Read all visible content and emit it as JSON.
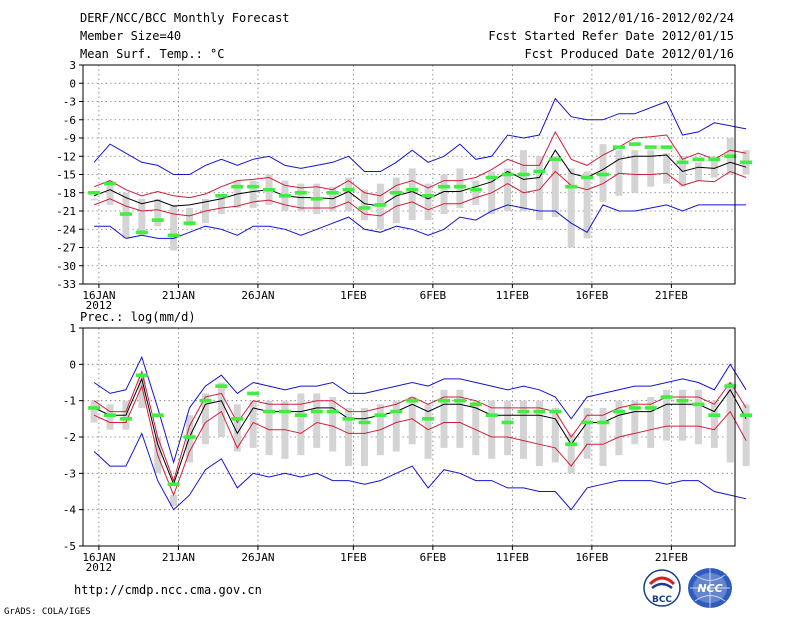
{
  "header": {
    "title": "DERF/NCC/BCC Monthly Forecast",
    "member_size": "Member Size=40",
    "variable": "Mean Surf. Temp.: °C",
    "period": "For 2012/01/16-2012/02/24",
    "start_date": "Fcst Started Refer Date 2012/01/15",
    "produced_date": "Fcst Produced Date 2012/01/16"
  },
  "footer": {
    "url": "http://cmdp.ncc.cma.gov.cn",
    "credit": "GrADS: COLA/IGES",
    "logo_bcc_text": "BCC",
    "logo_ncc_text": "NCC"
  },
  "chart_data": [
    {
      "type": "line",
      "title": "Mean Surf. Temp.: °C",
      "xlabel": "",
      "ylabel": "",
      "x_tick_labels": [
        "16JAN",
        "21JAN",
        "26JAN",
        "1FEB",
        "6FEB",
        "11FEB",
        "16FEB",
        "21FEB"
      ],
      "x_tick_days": [
        1,
        6,
        11,
        17,
        22,
        27,
        32,
        37
      ],
      "year_label": "2012",
      "ylim": [
        -33,
        3
      ],
      "yticks": [
        3,
        0,
        -3,
        -6,
        -9,
        -12,
        -15,
        -18,
        -21,
        -24,
        -27,
        -30,
        -33
      ],
      "day_range": [
        0,
        41
      ],
      "ensemble_mean": [
        -18.5,
        -17.5,
        -18.8,
        -19.8,
        -19.2,
        -20.2,
        -20.0,
        -19.5,
        -19.0,
        -18.2,
        -17.8,
        -17.5,
        -18.5,
        -18.8,
        -18.8,
        -19.0,
        -17.8,
        -19.8,
        -20.2,
        -18.5,
        -17.8,
        -19.0,
        -17.8,
        -17.8,
        -17.0,
        -16.2,
        -14.5,
        -15.8,
        -15.5,
        -11.0,
        -14.8,
        -15.5,
        -14.2,
        -12.5,
        -12.0,
        -12.0,
        -11.8,
        -14.5,
        -13.8,
        -14.0,
        -13.0,
        -13.8
      ],
      "upper_red": [
        -17.0,
        -16.0,
        -17.5,
        -18.5,
        -17.8,
        -18.5,
        -18.8,
        -18.2,
        -17.0,
        -16.0,
        -15.8,
        -15.5,
        -16.8,
        -17.2,
        -17.0,
        -17.5,
        -16.0,
        -18.0,
        -18.5,
        -16.8,
        -16.0,
        -17.2,
        -16.0,
        -16.0,
        -15.5,
        -14.2,
        -12.5,
        -13.5,
        -13.5,
        -8.0,
        -12.5,
        -13.5,
        -11.8,
        -10.5,
        -9.0,
        -8.8,
        -8.5,
        -12.5,
        -11.5,
        -12.5,
        -11.0,
        -11.5
      ],
      "lower_red": [
        -20.0,
        -19.0,
        -20.2,
        -21.0,
        -20.8,
        -21.5,
        -21.8,
        -21.0,
        -20.5,
        -20.2,
        -19.5,
        -19.2,
        -20.0,
        -20.5,
        -20.5,
        -20.5,
        -19.5,
        -21.5,
        -21.8,
        -20.2,
        -19.5,
        -20.8,
        -19.8,
        -19.8,
        -18.8,
        -18.0,
        -16.5,
        -18.0,
        -17.5,
        -14.5,
        -16.8,
        -17.5,
        -16.5,
        -14.8,
        -15.0,
        -15.0,
        -14.8,
        -16.8,
        -16.0,
        -16.2,
        -14.5,
        -15.5
      ],
      "max_blue": [
        -13.0,
        -10.0,
        -11.5,
        -13.0,
        -13.5,
        -15.0,
        -15.0,
        -13.5,
        -12.5,
        -13.5,
        -12.5,
        -12.0,
        -13.5,
        -14.0,
        -13.5,
        -13.0,
        -12.0,
        -14.5,
        -14.5,
        -13.0,
        -11.0,
        -13.0,
        -12.0,
        -10.0,
        -12.5,
        -12.0,
        -8.5,
        -9.0,
        -8.5,
        -2.5,
        -5.5,
        -6.0,
        -6.0,
        -5.0,
        -5.0,
        -4.0,
        -3.0,
        -8.5,
        -8.0,
        -6.5,
        -7.0,
        -7.5
      ],
      "min_blue": [
        -23.5,
        -23.5,
        -25.5,
        -25.0,
        -25.5,
        -25.5,
        -24.5,
        -23.5,
        -24.0,
        -25.0,
        -23.5,
        -23.5,
        -24.0,
        -25.0,
        -24.0,
        -23.0,
        -22.0,
        -24.0,
        -24.5,
        -23.5,
        -24.0,
        -25.0,
        -24.0,
        -22.0,
        -22.5,
        -21.0,
        -20.0,
        -20.5,
        -21.0,
        -21.0,
        -23.0,
        -24.5,
        -20.0,
        -21.0,
        -21.0,
        -20.5,
        -20.0,
        -21.0,
        -20.0,
        -20.0,
        -20.0,
        -20.0
      ],
      "spread_top": [
        -19.0,
        -16.0,
        -18.0,
        -19.0,
        -19.0,
        -20.0,
        -20.5,
        -19.0,
        -18.5,
        -16.0,
        -16.0,
        -15.0,
        -16.0,
        -16.5,
        -16.5,
        -17.0,
        -15.5,
        -17.5,
        -16.5,
        -15.5,
        -14.0,
        -16.5,
        -15.0,
        -14.0,
        -16.0,
        -14.5,
        -14.0,
        -11.0,
        -12.0,
        -12.0,
        -14.0,
        -14.5,
        -10.0,
        -11.0,
        -11.0,
        -11.0,
        -11.5,
        -12.0,
        -13.0,
        -12.0,
        -9.0,
        -11.0
      ],
      "spread_bottom": [
        -19.0,
        -20.0,
        -25.5,
        -25.0,
        -23.5,
        -27.5,
        -23.5,
        -23.0,
        -21.5,
        -20.5,
        -20.5,
        -20.0,
        -21.0,
        -21.0,
        -21.5,
        -21.0,
        -21.0,
        -22.5,
        -24.0,
        -23.0,
        -22.5,
        -22.5,
        -21.5,
        -20.5,
        -20.0,
        -21.5,
        -21.0,
        -21.0,
        -22.5,
        -22.0,
        -27.0,
        -25.5,
        -19.5,
        -18.5,
        -18.0,
        -17.0,
        -16.5,
        -17.0,
        -16.0,
        -15.5,
        -15.0,
        -15.0
      ],
      "obs_green": [
        -18.0,
        -16.5,
        -21.5,
        -24.5,
        -22.5,
        -25.0,
        -23.0,
        null,
        -18.5,
        -17.0,
        -17.0,
        -17.5,
        -18.5,
        -18.0,
        -19.0,
        -18.0,
        -17.5,
        -20.5,
        -20.0,
        -18.0,
        -17.5,
        -18.5,
        -17.0,
        -17.0,
        -17.5,
        -15.5,
        -15.0,
        -15.0,
        -14.5,
        -12.5,
        -17.0,
        -15.5,
        -15.0,
        -10.5,
        -10.0,
        -10.5,
        -10.5,
        -13.0,
        -12.5,
        -12.5,
        -12.0,
        -13.0
      ]
    },
    {
      "type": "line",
      "title": "Prec.: log(mm/d)",
      "xlabel": "",
      "ylabel": "",
      "x_tick_labels": [
        "16JAN",
        "21JAN",
        "26JAN",
        "1FEB",
        "6FEB",
        "11FEB",
        "16FEB",
        "21FEB"
      ],
      "x_tick_days": [
        1,
        6,
        11,
        17,
        22,
        27,
        32,
        37
      ],
      "year_label": "2012",
      "ylim": [
        -5,
        1
      ],
      "yticks": [
        1,
        0,
        -1,
        -2,
        -3,
        -4,
        -5
      ],
      "day_range": [
        0,
        41
      ],
      "ensemble_mean": [
        -1.2,
        -1.4,
        -1.4,
        -0.4,
        -2.2,
        -3.3,
        -2.0,
        -1.1,
        -1.0,
        -1.9,
        -1.2,
        -1.3,
        -1.3,
        -1.3,
        -1.2,
        -1.2,
        -1.5,
        -1.5,
        -1.4,
        -1.3,
        -1.1,
        -1.3,
        -1.1,
        -1.1,
        -1.2,
        -1.4,
        -1.4,
        -1.4,
        -1.4,
        -1.5,
        -2.2,
        -1.6,
        -1.6,
        -1.4,
        -1.3,
        -1.3,
        -1.1,
        -1.1,
        -1.1,
        -1.3,
        -0.7,
        -1.5
      ],
      "upper_red": [
        -1.0,
        -1.3,
        -1.3,
        -0.2,
        -2.0,
        -3.2,
        -1.7,
        -0.9,
        -0.8,
        -1.6,
        -1.0,
        -1.1,
        -1.1,
        -1.1,
        -1.0,
        -1.0,
        -1.3,
        -1.3,
        -1.2,
        -1.1,
        -0.9,
        -1.1,
        -0.9,
        -0.9,
        -1.0,
        -1.2,
        -1.2,
        -1.2,
        -1.2,
        -1.3,
        -2.0,
        -1.4,
        -1.4,
        -1.2,
        -1.1,
        -1.1,
        -0.9,
        -0.9,
        -0.9,
        -1.1,
        -0.5,
        -1.2
      ],
      "lower_red": [
        -1.4,
        -1.6,
        -1.6,
        -0.6,
        -2.5,
        -3.6,
        -2.4,
        -1.6,
        -1.3,
        -2.3,
        -1.6,
        -1.8,
        -1.8,
        -1.9,
        -1.6,
        -1.7,
        -1.9,
        -1.9,
        -1.8,
        -1.6,
        -1.5,
        -1.8,
        -1.6,
        -1.6,
        -1.8,
        -2.0,
        -2.0,
        -2.1,
        -2.2,
        -2.3,
        -2.8,
        -2.2,
        -2.2,
        -2.0,
        -1.9,
        -1.8,
        -1.7,
        -1.7,
        -1.7,
        -1.8,
        -1.3,
        -2.1
      ],
      "max_blue": [
        -0.5,
        -0.8,
        -0.7,
        0.2,
        -1.2,
        -2.7,
        -1.2,
        -0.6,
        -0.3,
        -0.8,
        -0.5,
        -0.6,
        -0.7,
        -0.6,
        -0.6,
        -0.5,
        -0.8,
        -0.8,
        -0.7,
        -0.6,
        -0.5,
        -0.6,
        -0.4,
        -0.4,
        -0.5,
        -0.6,
        -0.7,
        -0.6,
        -0.7,
        -0.9,
        -1.5,
        -0.9,
        -0.8,
        -0.7,
        -0.6,
        -0.6,
        -0.5,
        -0.4,
        -0.5,
        -0.7,
        0.0,
        -0.7
      ],
      "min_blue": [
        -2.4,
        -2.8,
        -2.8,
        -1.9,
        -3.2,
        -4.0,
        -3.6,
        -2.9,
        -2.6,
        -3.4,
        -3.0,
        -3.1,
        -3.0,
        -3.1,
        -3.0,
        -3.2,
        -3.2,
        -3.3,
        -3.2,
        -3.0,
        -2.8,
        -3.4,
        -2.9,
        -3.0,
        -3.2,
        -3.2,
        -3.4,
        -3.4,
        -3.5,
        -3.5,
        -4.0,
        -3.4,
        -3.3,
        -3.2,
        -3.2,
        -3.2,
        -3.3,
        -3.2,
        -3.2,
        -3.5,
        -3.6,
        -3.7
      ],
      "spread_top": [
        -1.0,
        -1.1,
        -1.0,
        -0.3,
        -2.0,
        -3.6,
        -1.4,
        -0.8,
        -0.5,
        -1.1,
        -1.0,
        -1.0,
        -1.0,
        -0.8,
        -0.8,
        -0.9,
        -1.2,
        -1.2,
        -1.1,
        -1.0,
        -0.9,
        -1.1,
        -0.7,
        -0.7,
        -1.0,
        -1.0,
        -1.0,
        -1.0,
        -1.0,
        -1.2,
        -1.9,
        -1.2,
        -1.2,
        -1.0,
        -1.0,
        -0.9,
        -0.7,
        -0.7,
        -0.7,
        -1.0,
        -0.5,
        -1.1
      ],
      "spread_bottom": [
        -1.6,
        -1.8,
        -1.8,
        -1.2,
        -3.0,
        -3.9,
        -2.7,
        -2.2,
        -2.0,
        -2.4,
        -2.3,
        -2.5,
        -2.6,
        -2.5,
        -2.3,
        -2.4,
        -2.8,
        -2.8,
        -2.5,
        -2.4,
        -2.2,
        -2.6,
        -2.3,
        -2.3,
        -2.5,
        -2.6,
        -2.5,
        -2.6,
        -2.8,
        -2.7,
        -3.0,
        -2.6,
        -2.8,
        -2.5,
        -2.2,
        -2.3,
        -2.1,
        -2.1,
        -2.2,
        -2.3,
        -2.7,
        -2.8
      ],
      "obs_green": [
        -1.2,
        -1.4,
        -1.5,
        -0.3,
        -1.4,
        -3.3,
        -2.0,
        -1.0,
        -0.6,
        -1.5,
        -0.8,
        -1.3,
        -1.3,
        -1.4,
        -1.3,
        -1.3,
        -1.5,
        -1.6,
        -1.4,
        -1.3,
        -1.0,
        -1.5,
        -1.0,
        -1.0,
        -1.1,
        -1.4,
        -1.6,
        -1.3,
        -1.3,
        -1.3,
        -2.2,
        -1.6,
        -1.6,
        -1.3,
        -1.2,
        -1.2,
        -0.9,
        -1.0,
        -1.1,
        -1.4,
        -0.6,
        -1.4
      ]
    }
  ]
}
